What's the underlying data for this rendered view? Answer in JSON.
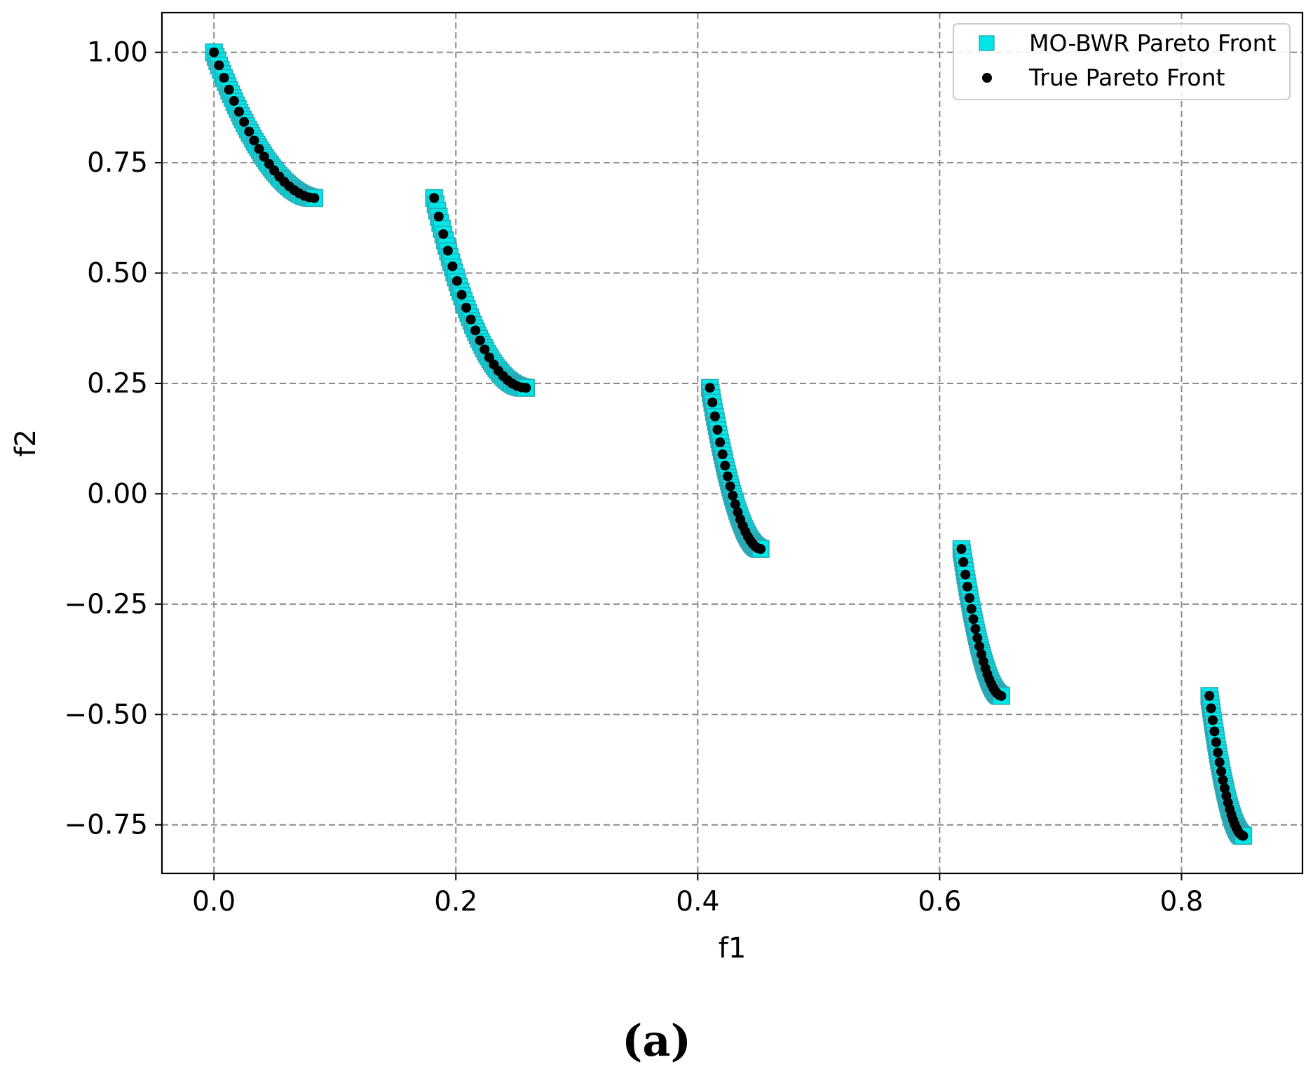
{
  "chart_data": {
    "type": "scatter",
    "xlabel": "f1",
    "ylabel": "f2",
    "xlim": [
      -0.043,
      0.9
    ],
    "ylim": [
      -0.86,
      1.09
    ],
    "x_ticks": [
      0.0,
      0.2,
      0.4,
      0.6,
      0.8
    ],
    "x_tick_labels": [
      "0.0",
      "0.2",
      "0.4",
      "0.6",
      "0.8"
    ],
    "y_ticks": [
      1.0,
      0.75,
      0.5,
      0.25,
      0.0,
      -0.25,
      -0.5,
      -0.75
    ],
    "y_tick_labels": [
      "1.00",
      "0.75",
      "0.50",
      "0.25",
      "0.00",
      "−0.25",
      "−0.50",
      "−0.75"
    ],
    "grid": true,
    "legend_position": "top-right",
    "series": [
      {
        "name": "MO-BWR Pareto Front",
        "marker": "square",
        "color": "#00e5e5",
        "edge_color": "#2aa9b5"
      },
      {
        "name": "True Pareto Front",
        "marker": "circle",
        "color": "#000000"
      }
    ],
    "segments": [
      {
        "x_range": [
          0.0,
          0.083
        ],
        "y_start": 1.0,
        "y_end": 0.67,
        "shape": 0.82
      },
      {
        "x_range": [
          0.182,
          0.258
        ],
        "y_start": 0.67,
        "y_end": 0.24,
        "shape": 1.0
      },
      {
        "x_range": [
          0.41,
          0.452
        ],
        "y_start": 0.24,
        "y_end": -0.125,
        "shape": 0.85
      },
      {
        "x_range": [
          0.618,
          0.651
        ],
        "y_start": -0.125,
        "y_end": -0.458,
        "shape": 0.82
      },
      {
        "x_range": [
          0.823,
          0.851
        ],
        "y_start": -0.458,
        "y_end": -0.775,
        "shape": 0.8
      }
    ]
  },
  "caption": "(a)"
}
